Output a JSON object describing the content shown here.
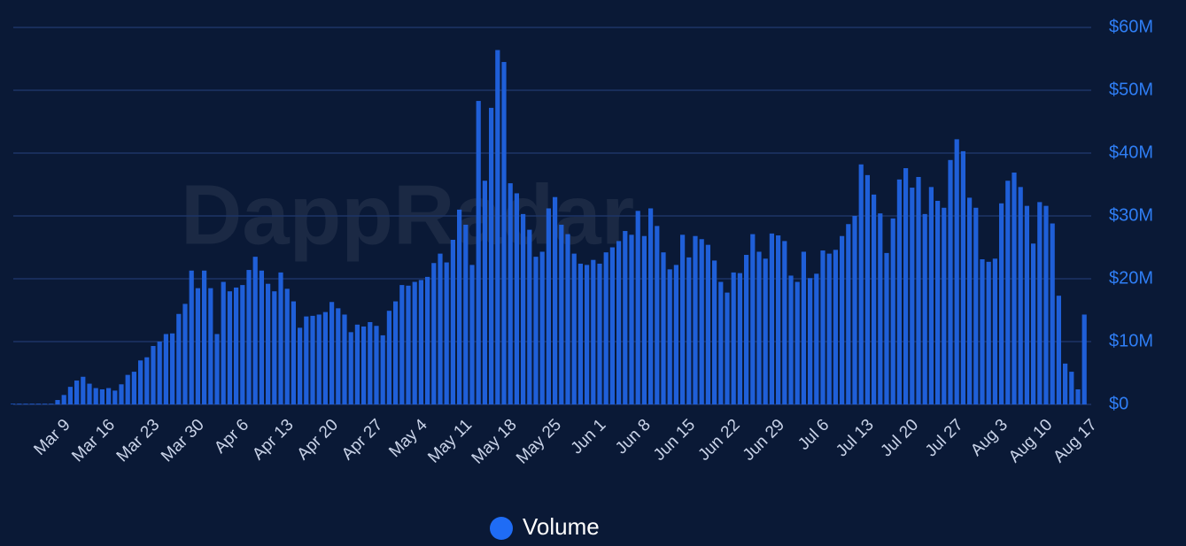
{
  "chart_data": {
    "type": "bar",
    "watermark": "DappRadar",
    "legend": "Volume",
    "series": [
      {
        "name": "Volume",
        "color": "#1f5fd8",
        "values": [
          100000,
          100000,
          100000,
          100000,
          100000,
          100000,
          100000,
          700000,
          1500000,
          2800000,
          3800000,
          4400000,
          3300000,
          2600000,
          2400000,
          2600000,
          2200000,
          3200000,
          4700000,
          5200000,
          7000000,
          7500000,
          9300000,
          10000000,
          11200000,
          11300000,
          14400000,
          16000000,
          21300000,
          18500000,
          21300000,
          18500000,
          11200000,
          19500000,
          18000000,
          18600000,
          19000000,
          21400000,
          23500000,
          21300000,
          19200000,
          18000000,
          21000000,
          18400000,
          16400000,
          12200000,
          14000000,
          14100000,
          14300000,
          14700000,
          16300000,
          15300000,
          14300000,
          11500000,
          12700000,
          12400000,
          13100000,
          12500000,
          11000000,
          14900000,
          16400000,
          19000000,
          18900000,
          19500000,
          19800000,
          20300000,
          22500000,
          24000000,
          22600000,
          26200000,
          31000000,
          28600000,
          22200000,
          48300000,
          35600000,
          47200000,
          56400000,
          54500000,
          35200000,
          33600000,
          30300000,
          27800000,
          23500000,
          24300000,
          31200000,
          33000000,
          28600000,
          27100000,
          24000000,
          22400000,
          22200000,
          23000000,
          22400000,
          24200000,
          25000000,
          26000000,
          27600000,
          27000000,
          30800000,
          26800000,
          31200000,
          28400000,
          24200000,
          21500000,
          22200000,
          27000000,
          23400000,
          26800000,
          26300000,
          25400000,
          22900000,
          19500000,
          17800000,
          21000000,
          20900000,
          23800000,
          27100000,
          24300000,
          23200000,
          27200000,
          26900000,
          26000000,
          20500000,
          19500000,
          24300000,
          20100000,
          20800000,
          24500000,
          24000000,
          24600000,
          26800000,
          28700000,
          30000000,
          38200000,
          36500000,
          33400000,
          30400000,
          24100000,
          29600000,
          35800000,
          37600000,
          34500000,
          36200000,
          30300000,
          34600000,
          32400000,
          31300000,
          38900000,
          42200000,
          40300000,
          32900000,
          31300000,
          23100000,
          22700000,
          23200000,
          32000000,
          35600000,
          36900000,
          34600000,
          31600000,
          25600000,
          32200000,
          31600000,
          28800000,
          17300000,
          6500000,
          5200000,
          2400000,
          14300000
        ]
      }
    ],
    "categories": [
      null,
      null,
      null,
      null,
      null,
      null,
      null,
      "Mar 9",
      null,
      null,
      null,
      null,
      null,
      null,
      "Mar 16",
      null,
      null,
      null,
      null,
      null,
      null,
      "Mar 23",
      null,
      null,
      null,
      null,
      null,
      null,
      "Mar 30",
      null,
      null,
      null,
      null,
      null,
      null,
      "Apr 6",
      null,
      null,
      null,
      null,
      null,
      null,
      "Apr 13",
      null,
      null,
      null,
      null,
      null,
      null,
      "Apr 20",
      null,
      null,
      null,
      null,
      null,
      null,
      "Apr 27",
      null,
      null,
      null,
      null,
      null,
      null,
      "May 4",
      null,
      null,
      null,
      null,
      null,
      null,
      "May 11",
      null,
      null,
      null,
      null,
      null,
      null,
      "May 18",
      null,
      null,
      null,
      null,
      null,
      null,
      "May 25",
      null,
      null,
      null,
      null,
      null,
      null,
      "Jun 1",
      null,
      null,
      null,
      null,
      null,
      null,
      "Jun 8",
      null,
      null,
      null,
      null,
      null,
      null,
      "Jun 15",
      null,
      null,
      null,
      null,
      null,
      null,
      "Jun 22",
      null,
      null,
      null,
      null,
      null,
      null,
      "Jun 29",
      null,
      null,
      null,
      null,
      null,
      null,
      "Jul 6",
      null,
      null,
      null,
      null,
      null,
      null,
      "Jul 13",
      null,
      null,
      null,
      null,
      null,
      null,
      "Jul 20",
      null,
      null,
      null,
      null,
      null,
      null,
      "Jul 27",
      null,
      null,
      null,
      null,
      null,
      null,
      "Aug 3",
      null,
      null,
      null,
      null,
      null,
      null,
      "Aug 10",
      null,
      null,
      null,
      null,
      null,
      null,
      "Aug 17"
    ],
    "ylim": [
      0,
      60000000
    ],
    "yticks": [
      {
        "value": 0,
        "label": "$0"
      },
      {
        "value": 10000000,
        "label": "$10M"
      },
      {
        "value": 20000000,
        "label": "$20M"
      },
      {
        "value": 30000000,
        "label": "$30M"
      },
      {
        "value": 40000000,
        "label": "$40M"
      },
      {
        "value": 50000000,
        "label": "$50M"
      },
      {
        "value": 60000000,
        "label": "$60M"
      }
    ],
    "grid": true
  }
}
